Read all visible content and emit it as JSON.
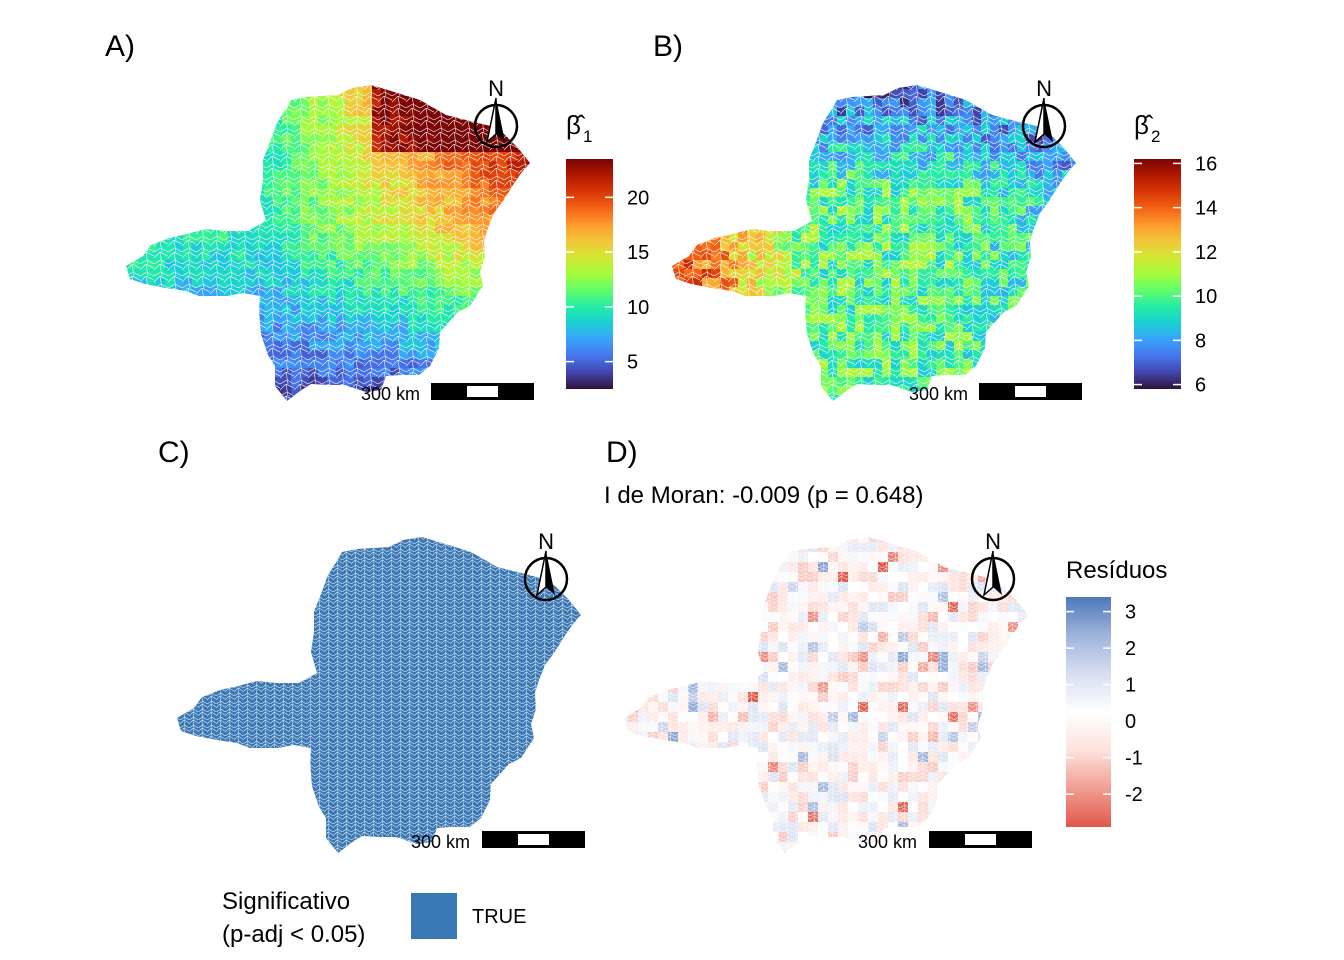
{
  "panels": {
    "a": {
      "label": "A)",
      "legend": {
        "title_symbol": "β̂",
        "title_sub": "1",
        "ticks": [
          "5",
          "10",
          "15",
          "20"
        ],
        "range": [
          2.5,
          23.5
        ],
        "tick_values": [
          5,
          10,
          15,
          20
        ]
      },
      "scalebar": "300 km",
      "north": "N"
    },
    "b": {
      "label": "B)",
      "legend": {
        "title_symbol": "β̂",
        "title_sub": "2",
        "ticks": [
          "6",
          "8",
          "10",
          "12",
          "14",
          "16"
        ],
        "range": [
          5.8,
          16.2
        ],
        "tick_values": [
          6,
          8,
          10,
          12,
          14,
          16
        ]
      },
      "scalebar": "300 km",
      "north": "N"
    },
    "c": {
      "label": "C)",
      "legend": {
        "title_line1": "Significativo",
        "title_line2": "(p-adj < 0.05)",
        "key_label": "TRUE",
        "key_color": "#3a78b5"
      },
      "scalebar": "300 km",
      "north": "N"
    },
    "d": {
      "label": "D)",
      "subtitle": "I de Moran: -0.009 (p = 0.648)",
      "legend": {
        "title": "Resíduos",
        "ticks": [
          "3",
          "2",
          "1",
          "0",
          "-1",
          "-2"
        ],
        "range": [
          -2.9,
          3.4
        ],
        "tick_values": [
          3,
          2,
          1,
          0,
          -1,
          -2
        ]
      },
      "scalebar": "300 km",
      "north": "N"
    }
  },
  "colors": {
    "turbo": [
      "#30123b",
      "#4145ab",
      "#4675ed",
      "#39a2fc",
      "#1bcfd4",
      "#24eca6",
      "#61fc6c",
      "#a4fc3b",
      "#d1e834",
      "#f3c63a",
      "#fe9b2d",
      "#f36315",
      "#d93806",
      "#b11901",
      "#7a0403"
    ],
    "diverging": [
      "#e0584a",
      "#f19d91",
      "#fde2dd",
      "#ffffff",
      "#d6def0",
      "#9fb4dc",
      "#4f78bb"
    ],
    "significant": "#3a78b5",
    "boundary": "#ffffff"
  }
}
